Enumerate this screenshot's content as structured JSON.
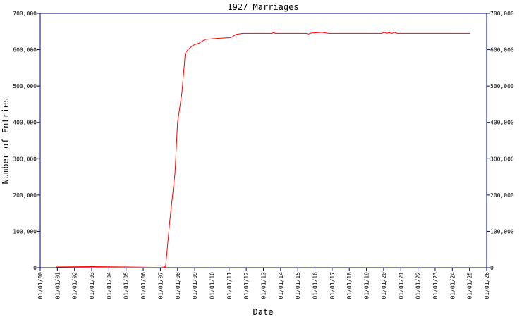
{
  "chart_data": {
    "type": "line",
    "title": "1927 Marriages",
    "x_label": "Date",
    "y_label": "Number of Entries",
    "color": "#ff0000",
    "axis_color": "#000080",
    "grid": false,
    "x": [
      0.95,
      3,
      5,
      7,
      7.2,
      7.3,
      7.55,
      7.85,
      8.0,
      8.25,
      8.45,
      8.6,
      8.9,
      9.25,
      9.6,
      10.0,
      10.6,
      11.1,
      11.4,
      11.8,
      13.5,
      13.6,
      13.7,
      15.5,
      15.6,
      15.8,
      16.4,
      16.8,
      19.9,
      20.0,
      20.2,
      20.3,
      20.5,
      20.6,
      20.8,
      25.05
    ],
    "values": [
      2000,
      3000,
      4000,
      5000,
      4000,
      0,
      130000,
      260000,
      400000,
      480000,
      590000,
      600000,
      612000,
      618000,
      628000,
      630000,
      632000,
      633000,
      642000,
      645000,
      645000,
      647000,
      645000,
      645000,
      643000,
      646000,
      648000,
      645000,
      645000,
      648000,
      645000,
      647000,
      645000,
      648000,
      645000,
      645000
    ],
    "xlim": [
      0,
      26
    ],
    "xticks": [
      {
        "value": 0,
        "label": "01/01/00"
      },
      {
        "value": 1,
        "label": "01/01/01"
      },
      {
        "value": 2,
        "label": "01/01/02"
      },
      {
        "value": 3,
        "label": "01/01/03"
      },
      {
        "value": 4,
        "label": "01/01/04"
      },
      {
        "value": 5,
        "label": "01/01/05"
      },
      {
        "value": 6,
        "label": "01/01/06"
      },
      {
        "value": 7,
        "label": "01/01/07"
      },
      {
        "value": 8,
        "label": "01/01/08"
      },
      {
        "value": 9,
        "label": "01/01/09"
      },
      {
        "value": 10,
        "label": "01/01/10"
      },
      {
        "value": 11,
        "label": "01/01/11"
      },
      {
        "value": 12,
        "label": "01/01/12"
      },
      {
        "value": 13,
        "label": "01/01/13"
      },
      {
        "value": 14,
        "label": "01/01/14"
      },
      {
        "value": 15,
        "label": "01/01/15"
      },
      {
        "value": 16,
        "label": "01/01/16"
      },
      {
        "value": 17,
        "label": "01/01/17"
      },
      {
        "value": 18,
        "label": "01/01/18"
      },
      {
        "value": 19,
        "label": "01/01/19"
      },
      {
        "value": 20,
        "label": "01/01/20"
      },
      {
        "value": 21,
        "label": "01/01/21"
      },
      {
        "value": 22,
        "label": "01/01/22"
      },
      {
        "value": 23,
        "label": "01/01/23"
      },
      {
        "value": 24,
        "label": "01/01/24"
      },
      {
        "value": 25,
        "label": "01/01/25"
      },
      {
        "value": 26,
        "label": "01/01/26"
      }
    ],
    "ylim": [
      0,
      700000
    ],
    "yticks": [
      0,
      {
        "value": 100000,
        "label": "100,000"
      },
      {
        "value": 200000,
        "label": "200,000"
      },
      {
        "value": 300000,
        "label": "300,000"
      },
      {
        "value": 400000,
        "label": "400,000"
      },
      {
        "value": 500000,
        "label": "500,000"
      },
      {
        "value": 600000,
        "label": "600,000"
      },
      {
        "value": 700000,
        "label": "700,000"
      }
    ]
  }
}
